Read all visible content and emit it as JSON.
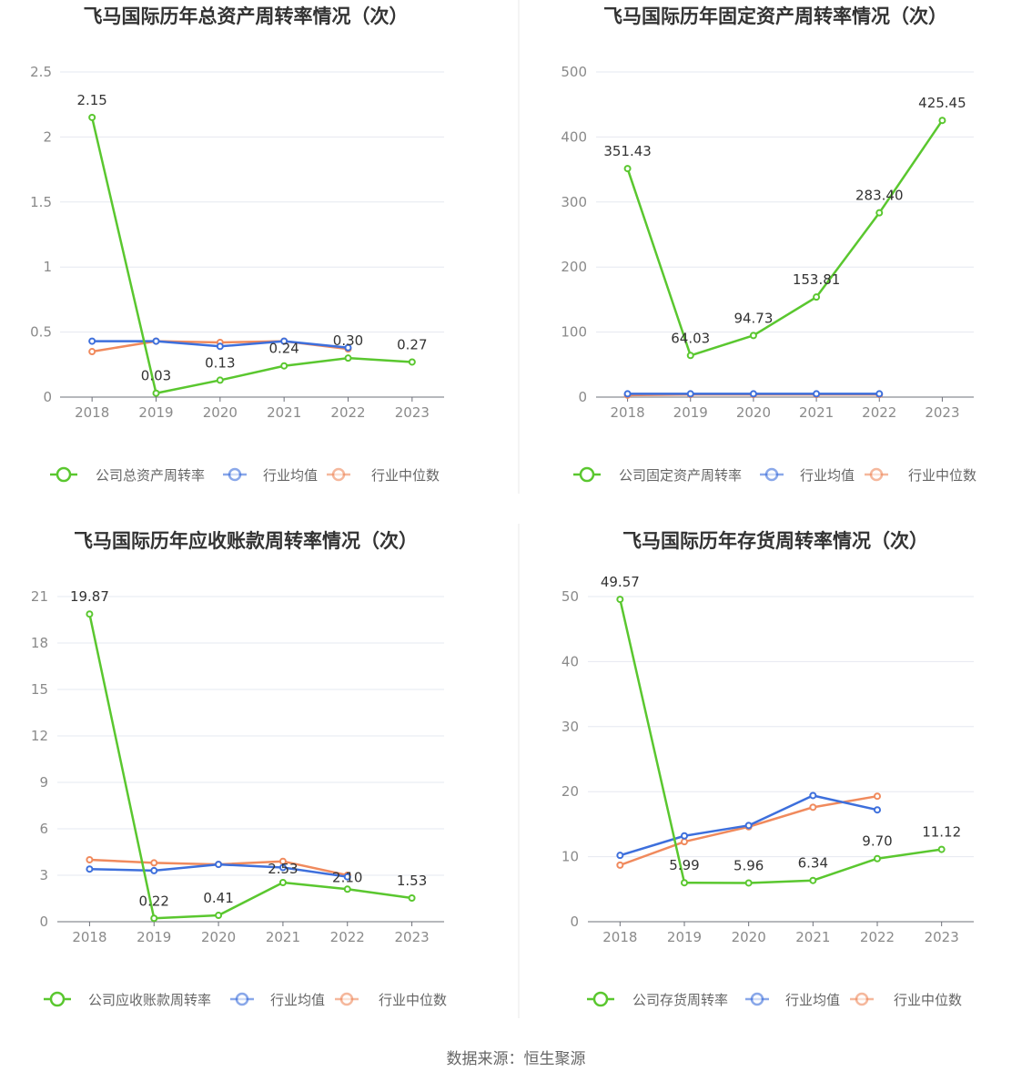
{
  "source": "数据来源：恒生聚源",
  "legend_labels": [
    "行业均值",
    "行业中位数"
  ],
  "colors": {
    "company": "#5ac72f",
    "industry_avg": "#3d6fdc",
    "industry_median": "#f08a5d"
  },
  "chart_data": [
    {
      "type": "line",
      "title": "飞马国际历年总资产周转率情况（次）",
      "categories": [
        "2018",
        "2019",
        "2020",
        "2021",
        "2022",
        "2023"
      ],
      "ylim": [
        0,
        2.5
      ],
      "yticks": [
        "0",
        "0.5",
        "1",
        "1.5",
        "2",
        "2.5"
      ],
      "grid": true,
      "legend_position": "bottom",
      "series": [
        {
          "name": "公司总资产周转率",
          "values": [
            2.15,
            0.03,
            0.13,
            0.24,
            0.3,
            0.27
          ],
          "labels": [
            "2.15",
            "0.03",
            "0.13",
            "0.24",
            "0.30",
            "0.27"
          ]
        },
        {
          "name": "行业均值",
          "values": [
            0.43,
            0.43,
            0.39,
            0.43,
            0.38,
            null
          ]
        },
        {
          "name": "行业中位数",
          "values": [
            0.35,
            0.43,
            0.42,
            0.43,
            0.37,
            null
          ]
        }
      ]
    },
    {
      "type": "line",
      "title": "飞马国际历年固定资产周转率情况（次）",
      "categories": [
        "2018",
        "2019",
        "2020",
        "2021",
        "2022",
        "2023"
      ],
      "ylim": [
        0,
        500
      ],
      "yticks": [
        "0",
        "100",
        "200",
        "300",
        "400",
        "500"
      ],
      "grid": true,
      "legend_position": "bottom",
      "series": [
        {
          "name": "公司固定资产周转率",
          "values": [
            351.43,
            64.03,
            94.73,
            153.81,
            283.4,
            425.45
          ],
          "labels": [
            "351.43",
            "64.03",
            "94.73",
            "153.81",
            "283.40",
            "425.45"
          ]
        },
        {
          "name": "行业均值",
          "values": [
            5,
            5,
            5,
            5,
            5,
            null
          ]
        },
        {
          "name": "行业中位数",
          "values": [
            3,
            4,
            4,
            4,
            4,
            null
          ]
        }
      ]
    },
    {
      "type": "line",
      "title": "飞马国际历年应收账款周转率情况（次）",
      "categories": [
        "2018",
        "2019",
        "2020",
        "2021",
        "2022",
        "2023"
      ],
      "ylim": [
        0,
        21
      ],
      "yticks": [
        "0",
        "3",
        "6",
        "9",
        "12",
        "15",
        "18",
        "21"
      ],
      "grid": true,
      "legend_position": "bottom",
      "series": [
        {
          "name": "公司应收账款周转率",
          "values": [
            19.87,
            0.22,
            0.41,
            2.53,
            2.1,
            1.53
          ],
          "labels": [
            "19.87",
            "0.22",
            "0.41",
            "2.53",
            "2.10",
            "1.53"
          ]
        },
        {
          "name": "行业均值",
          "values": [
            3.4,
            3.3,
            3.7,
            3.5,
            2.9,
            null
          ]
        },
        {
          "name": "行业中位数",
          "values": [
            4.0,
            3.8,
            3.7,
            3.9,
            3.0,
            null
          ]
        }
      ]
    },
    {
      "type": "line",
      "title": "飞马国际历年存货周转率情况（次）",
      "categories": [
        "2018",
        "2019",
        "2020",
        "2021",
        "2022",
        "2023"
      ],
      "ylim": [
        0,
        50
      ],
      "yticks": [
        "0",
        "10",
        "20",
        "30",
        "40",
        "50"
      ],
      "grid": true,
      "legend_position": "bottom",
      "series": [
        {
          "name": "公司存货周转率",
          "values": [
            49.57,
            5.99,
            5.96,
            6.34,
            9.7,
            11.12
          ],
          "labels": [
            "49.57",
            "5.99",
            "5.96",
            "6.34",
            "9.70",
            "11.12"
          ]
        },
        {
          "name": "行业均值",
          "values": [
            10.2,
            13.2,
            14.8,
            19.4,
            17.2,
            null
          ]
        },
        {
          "name": "行业中位数",
          "values": [
            8.7,
            12.3,
            14.6,
            17.6,
            19.3,
            null
          ]
        }
      ]
    }
  ]
}
